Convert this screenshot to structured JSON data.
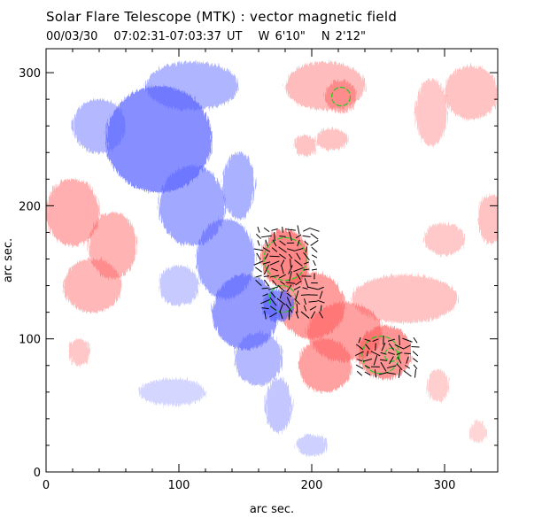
{
  "header": {
    "title": "Solar Flare Telescope (MTK) : vector magnetic field",
    "date": "00/03/30",
    "time_range": "07:02:31-07:03:37 UT",
    "position_w": "W 6'10\"",
    "position_n": "N 2'12\""
  },
  "axes": {
    "xlabel": "arc sec.",
    "ylabel": "arc sec.",
    "xlim": [
      0,
      340
    ],
    "ylim": [
      0,
      318
    ],
    "xticks": [
      0,
      100,
      200,
      300
    ],
    "yticks": [
      0,
      100,
      200,
      300
    ]
  },
  "colors": {
    "positive_polarity": "#ff5a5a",
    "negative_polarity": "#5a64ff",
    "neutral_line": "#22cc22",
    "vectors": "#000000"
  },
  "chart_data": {
    "type": "heatmap",
    "xlabel": "arc sec.",
    "ylabel": "arc sec.",
    "xlim": [
      0,
      340
    ],
    "ylim": [
      0,
      318
    ],
    "grid": false,
    "positive_regions": [
      {
        "x": 20,
        "y": 195,
        "rx": 20,
        "ry": 25,
        "strength": 0.55
      },
      {
        "x": 50,
        "y": 170,
        "rx": 18,
        "ry": 25,
        "strength": 0.5
      },
      {
        "x": 35,
        "y": 140,
        "rx": 22,
        "ry": 20,
        "strength": 0.45
      },
      {
        "x": 25,
        "y": 90,
        "rx": 8,
        "ry": 10,
        "strength": 0.3
      },
      {
        "x": 180,
        "y": 160,
        "rx": 18,
        "ry": 22,
        "strength": 1.0
      },
      {
        "x": 200,
        "y": 125,
        "rx": 25,
        "ry": 25,
        "strength": 0.75
      },
      {
        "x": 225,
        "y": 105,
        "rx": 28,
        "ry": 22,
        "strength": 0.7
      },
      {
        "x": 210,
        "y": 80,
        "rx": 20,
        "ry": 20,
        "strength": 0.7
      },
      {
        "x": 255,
        "y": 90,
        "rx": 20,
        "ry": 20,
        "strength": 0.85
      },
      {
        "x": 270,
        "y": 130,
        "rx": 40,
        "ry": 18,
        "strength": 0.35
      },
      {
        "x": 210,
        "y": 290,
        "rx": 30,
        "ry": 18,
        "strength": 0.4
      },
      {
        "x": 222,
        "y": 282,
        "rx": 12,
        "ry": 12,
        "strength": 0.55
      },
      {
        "x": 195,
        "y": 245,
        "rx": 8,
        "ry": 8,
        "strength": 0.35
      },
      {
        "x": 215,
        "y": 250,
        "rx": 12,
        "ry": 8,
        "strength": 0.35
      },
      {
        "x": 290,
        "y": 270,
        "rx": 12,
        "ry": 25,
        "strength": 0.3
      },
      {
        "x": 320,
        "y": 285,
        "rx": 20,
        "ry": 20,
        "strength": 0.35
      },
      {
        "x": 335,
        "y": 190,
        "rx": 10,
        "ry": 18,
        "strength": 0.35
      },
      {
        "x": 300,
        "y": 175,
        "rx": 15,
        "ry": 12,
        "strength": 0.25
      },
      {
        "x": 295,
        "y": 65,
        "rx": 8,
        "ry": 12,
        "strength": 0.2
      },
      {
        "x": 325,
        "y": 30,
        "rx": 6,
        "ry": 8,
        "strength": 0.15
      }
    ],
    "negative_regions": [
      {
        "x": 85,
        "y": 250,
        "rx": 40,
        "ry": 40,
        "strength": 1.0
      },
      {
        "x": 110,
        "y": 290,
        "rx": 35,
        "ry": 18,
        "strength": 0.55
      },
      {
        "x": 40,
        "y": 260,
        "rx": 20,
        "ry": 20,
        "strength": 0.5
      },
      {
        "x": 110,
        "y": 200,
        "rx": 25,
        "ry": 30,
        "strength": 0.7
      },
      {
        "x": 135,
        "y": 160,
        "rx": 22,
        "ry": 30,
        "strength": 0.7
      },
      {
        "x": 150,
        "y": 120,
        "rx": 25,
        "ry": 28,
        "strength": 0.85
      },
      {
        "x": 175,
        "y": 125,
        "rx": 12,
        "ry": 12,
        "strength": 1.0
      },
      {
        "x": 160,
        "y": 85,
        "rx": 18,
        "ry": 20,
        "strength": 0.5
      },
      {
        "x": 175,
        "y": 50,
        "rx": 10,
        "ry": 20,
        "strength": 0.35
      },
      {
        "x": 145,
        "y": 215,
        "rx": 12,
        "ry": 25,
        "strength": 0.6
      },
      {
        "x": 100,
        "y": 140,
        "rx": 15,
        "ry": 15,
        "strength": 0.3
      },
      {
        "x": 95,
        "y": 60,
        "rx": 25,
        "ry": 10,
        "strength": 0.15
      },
      {
        "x": 200,
        "y": 20,
        "rx": 12,
        "ry": 8,
        "strength": 0.2
      }
    ],
    "neutral_line_contours": [
      {
        "x": 222,
        "y": 282,
        "r": 7
      },
      {
        "x": 180,
        "y": 160,
        "r": 16
      },
      {
        "x": 178,
        "y": 130,
        "r": 10
      },
      {
        "x": 252,
        "y": 88,
        "r": 14
      },
      {
        "x": 260,
        "y": 88,
        "r": 5
      }
    ],
    "vector_clusters": [
      {
        "x0": 160,
        "y0": 142,
        "x1": 205,
        "y1": 182,
        "dx": 3,
        "dy": 5
      },
      {
        "x0": 165,
        "y0": 118,
        "x1": 212,
        "y1": 140,
        "dx": 3,
        "dy": 5
      },
      {
        "x0": 236,
        "y0": 74,
        "x1": 280,
        "y1": 102,
        "dx": 3,
        "dy": 5
      }
    ]
  }
}
